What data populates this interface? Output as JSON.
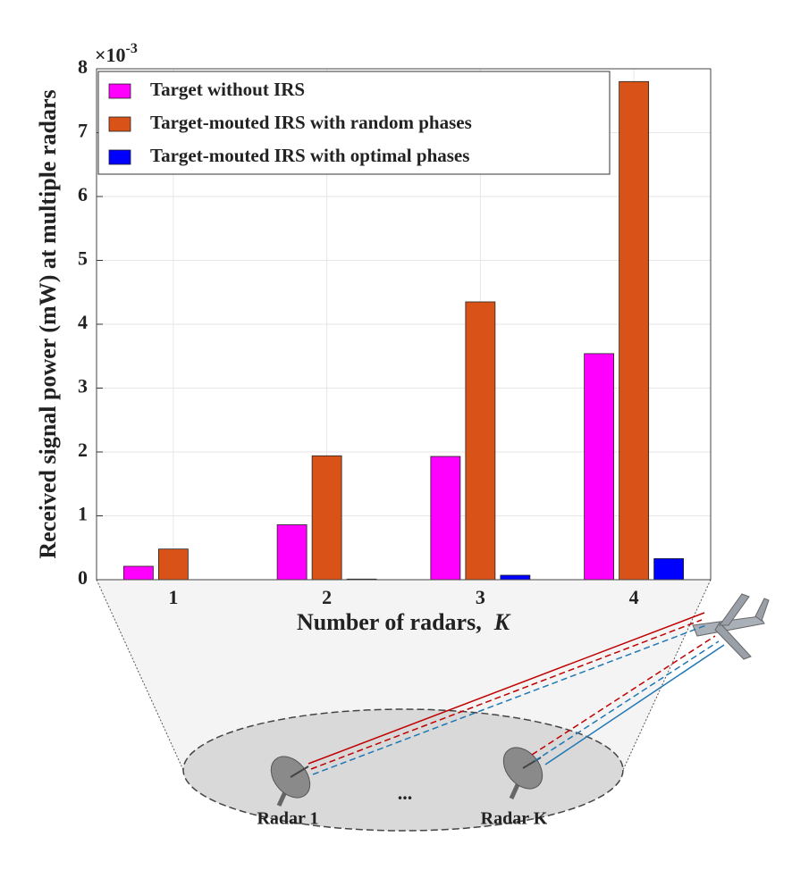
{
  "chart_data": {
    "type": "bar",
    "y_multiplier": {
      "base": "×10",
      "exponent": "-3"
    },
    "ylabel": "Received signal power (mW) at multiple radars",
    "xlabel": "Number of radars,",
    "xlabel_var": "K",
    "categories": [
      "1",
      "2",
      "3",
      "4"
    ],
    "series": [
      {
        "name": "Target without IRS",
        "color": "#ff00ff",
        "values": [
          0.21,
          0.86,
          1.93,
          3.54
        ]
      },
      {
        "name": "Target-mouted IRS with random phases",
        "color": "#d95319",
        "values": [
          0.48,
          1.94,
          4.35,
          7.8
        ]
      },
      {
        "name": "Target-mouted IRS with optimal phases",
        "color": "#0000ff",
        "values": [
          0.0,
          0.01,
          0.07,
          0.33
        ]
      }
    ],
    "ylim": [
      0,
      8
    ],
    "yticks": [
      0,
      1,
      2,
      3,
      4,
      5,
      6,
      7,
      8
    ],
    "grid": true,
    "legend": "upper left",
    "diagram": {
      "radars": [
        "Radar 1",
        "Radar K"
      ],
      "ellipsis": "..."
    }
  }
}
